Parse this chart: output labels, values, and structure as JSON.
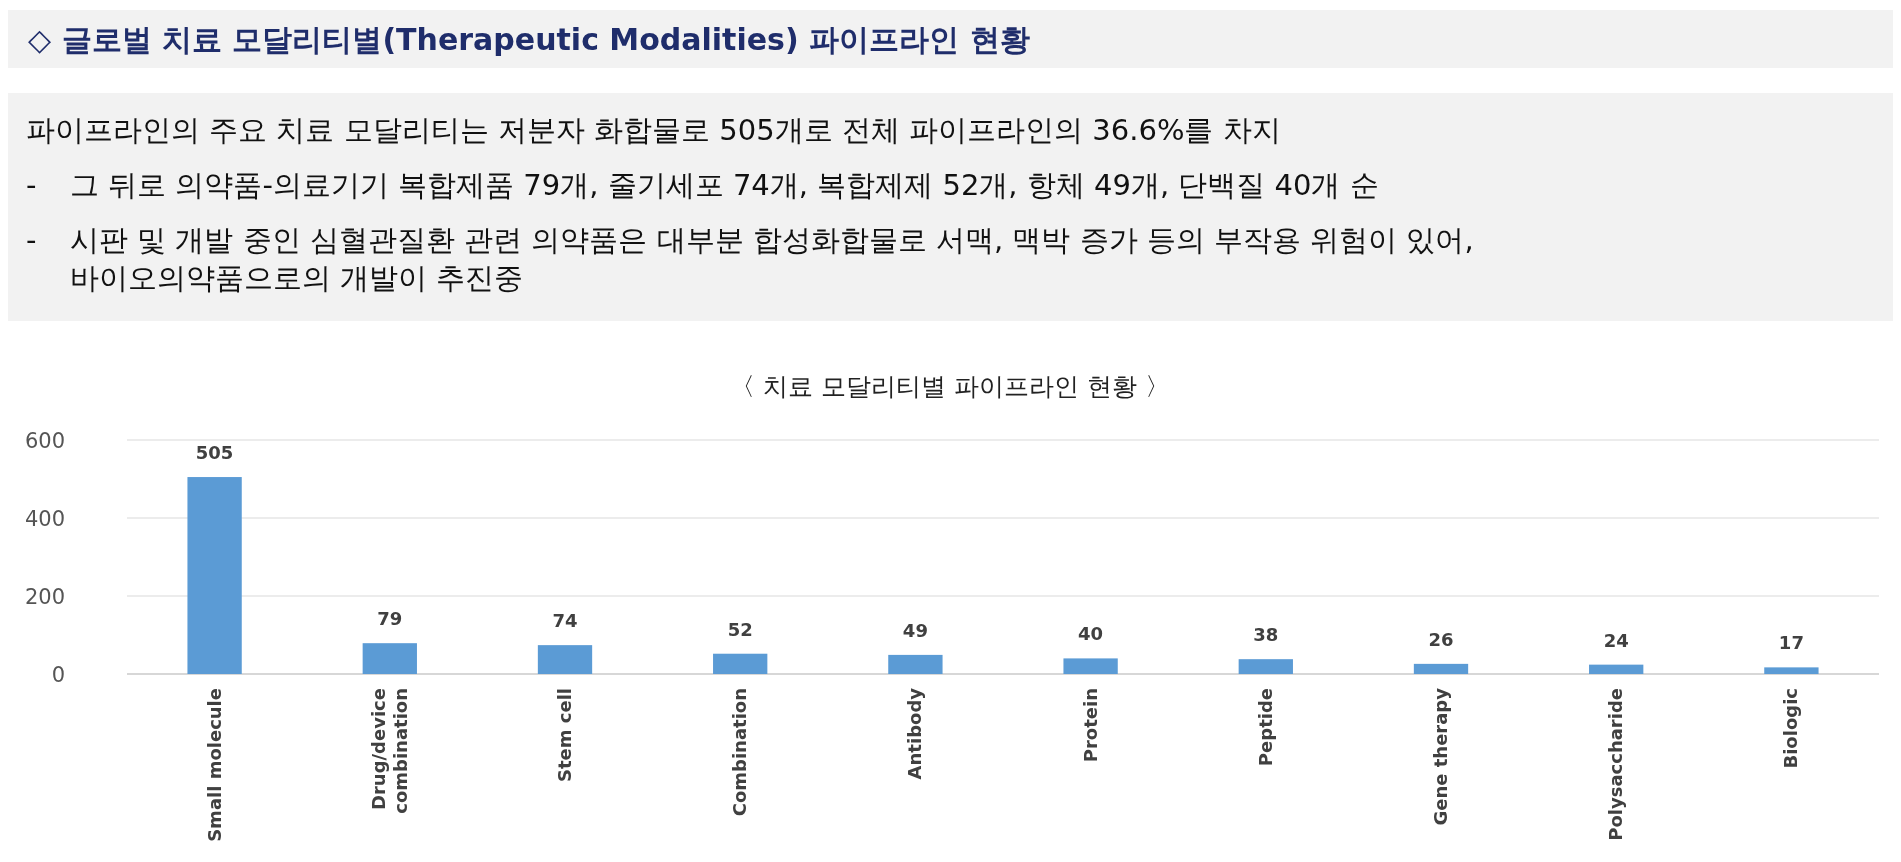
{
  "chart_data": {
    "type": "bar",
    "title": "◇ 글로벌 치료 모달리티별(Therapeutic Modalities) 파이프라인 현황",
    "subtitle": "〈 치료 모달리티별 파이프라인 현황 〉",
    "annotations": [
      "파이프라인의 주요 치료 모달리티는 저분자 화합물로 505개로 전체 파이프라인의 36.6%를 차지",
      "-  그 뒤로 의약품-의료기기 복합제품 79개, 줄기세포 74개, 복합제제 52개, 항체 49개, 단백질 40개 순",
      "-  시판 및 개발 중인 심혈관질환 관련 의약품은 대부분 합성화합물로 서맥, 맥박 증가 등의 부작용 위험이 있어,\n바이오의약품으로의 개발이 추진중"
    ],
    "categories": [
      "Small molecule",
      "Drug/device\ncombination",
      "Stem cell",
      "Combination",
      "Antibody",
      "Protein",
      "Peptide",
      "Gene therapy",
      "Polysaccharide",
      "Biologic"
    ],
    "values": [
      505,
      79,
      74,
      52,
      49,
      40,
      38,
      26,
      24,
      17
    ],
    "color": "#5b9bd5",
    "ylim": [
      0,
      600
    ],
    "yticks": [
      0,
      200,
      400,
      600
    ],
    "grid": "y",
    "data_labels": true
  }
}
